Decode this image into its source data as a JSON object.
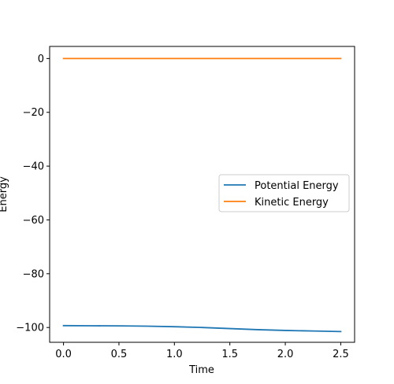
{
  "chart_data": {
    "type": "line",
    "title": "",
    "xlabel": "Time",
    "ylabel": "Energy",
    "xlim": [
      -0.125,
      2.625
    ],
    "ylim": [
      -105.5,
      4.5
    ],
    "xticks": [
      0.0,
      0.5,
      1.0,
      1.5,
      2.0,
      2.5
    ],
    "xtick_labels": [
      "0.0",
      "0.5",
      "1.0",
      "1.5",
      "2.0",
      "2.5"
    ],
    "yticks": [
      0,
      -20,
      -40,
      -60,
      -80,
      -100
    ],
    "ytick_labels": [
      "0",
      "−20",
      "−40",
      "−60",
      "−80",
      "−100"
    ],
    "grid": false,
    "legend_position": "center-right",
    "series": [
      {
        "name": "Potential Energy",
        "color": "#1f77b4",
        "x": [
          0.0,
          0.25,
          0.5,
          0.75,
          1.0,
          1.25,
          1.5,
          1.75,
          2.0,
          2.25,
          2.5
        ],
        "y": [
          -99.3,
          -99.35,
          -99.4,
          -99.5,
          -99.7,
          -100.0,
          -100.4,
          -100.8,
          -101.1,
          -101.3,
          -101.5
        ]
      },
      {
        "name": "Kinetic Energy",
        "color": "#ff7f0e",
        "x": [
          0.0,
          0.25,
          0.5,
          0.75,
          1.0,
          1.25,
          1.5,
          1.75,
          2.0,
          2.25,
          2.5
        ],
        "y": [
          0,
          0,
          0,
          0,
          0,
          0,
          0,
          0,
          0,
          0,
          0
        ]
      }
    ]
  }
}
